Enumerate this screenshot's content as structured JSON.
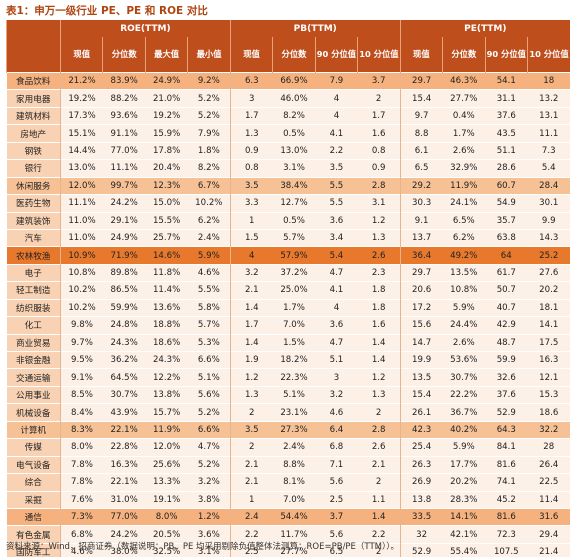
{
  "header": {
    "title": "表1：申万一级行业 PE、PE 和 ROE 对比"
  },
  "table": {
    "groups": [
      "ROE(TTM)",
      "PB(TTM)",
      "PE(TTM)"
    ],
    "columns": [
      "现值",
      "分位数",
      "最大值",
      "最小值",
      "现值",
      "分位数",
      "90 分位值",
      "10 分位值",
      "现值",
      "分位数",
      "90 分位值",
      "10 分位值"
    ],
    "rows": [
      [
        "食品饮料",
        "21.2%",
        "83.9%",
        "24.9%",
        "9.2%",
        "6.3",
        "66.9%",
        "7.9",
        "3.7",
        "29.7",
        "46.3%",
        "54.1",
        "18"
      ],
      [
        "家用电器",
        "19.2%",
        "88.2%",
        "21.0%",
        "5.2%",
        "3",
        "46.0%",
        "4",
        "2",
        "15.4",
        "27.7%",
        "31.1",
        "13.2"
      ],
      [
        "建筑材料",
        "17.3%",
        "93.6%",
        "19.2%",
        "5.2%",
        "1.7",
        "8.2%",
        "4",
        "1.7",
        "9.7",
        "0.4%",
        "37.6",
        "13.1"
      ],
      [
        "房地产",
        "15.1%",
        "91.1%",
        "15.9%",
        "7.9%",
        "1.3",
        "0.5%",
        "4.1",
        "1.6",
        "8.8",
        "1.7%",
        "43.5",
        "11.1"
      ],
      [
        "钢铁",
        "14.4%",
        "77.0%",
        "17.8%",
        "1.8%",
        "0.9",
        "13.0%",
        "2.2",
        "0.8",
        "6.1",
        "2.6%",
        "51.1",
        "7.3"
      ],
      [
        "银行",
        "13.0%",
        "11.1%",
        "20.4%",
        "8.2%",
        "0.8",
        "3.1%",
        "3.5",
        "0.9",
        "6.5",
        "32.9%",
        "28.6",
        "5.4"
      ],
      [
        "休闲服务",
        "12.0%",
        "99.7%",
        "12.3%",
        "6.7%",
        "3.5",
        "38.4%",
        "5.5",
        "2.8",
        "29.2",
        "11.9%",
        "60.7",
        "28.4"
      ],
      [
        "医药生物",
        "11.1%",
        "24.2%",
        "15.0%",
        "10.2%",
        "3.3",
        "12.7%",
        "5.5",
        "3.1",
        "30.3",
        "24.1%",
        "54.9",
        "30.1"
      ],
      [
        "建筑装饰",
        "11.0%",
        "29.1%",
        "15.5%",
        "6.2%",
        "1",
        "0.5%",
        "3.6",
        "1.2",
        "9.1",
        "6.5%",
        "35.7",
        "9.9"
      ],
      [
        "汽车",
        "11.0%",
        "24.9%",
        "25.7%",
        "2.4%",
        "1.5",
        "5.7%",
        "3.4",
        "1.3",
        "13.7",
        "6.2%",
        "63.8",
        "14.3"
      ],
      [
        "农林牧渔",
        "10.9%",
        "71.9%",
        "14.6%",
        "5.9%",
        "4",
        "57.9%",
        "5.4",
        "2.6",
        "36.4",
        "49.2%",
        "64",
        "25.2"
      ],
      [
        "电子",
        "10.8%",
        "89.8%",
        "11.8%",
        "4.6%",
        "3.2",
        "37.2%",
        "4.7",
        "2.3",
        "29.7",
        "13.5%",
        "61.7",
        "27.6"
      ],
      [
        "轻工制造",
        "10.2%",
        "86.5%",
        "11.4%",
        "5.5%",
        "2.1",
        "25.0%",
        "4.1",
        "1.8",
        "20.6",
        "10.8%",
        "50.7",
        "20.2"
      ],
      [
        "纺织服装",
        "10.2%",
        "59.9%",
        "13.6%",
        "5.8%",
        "1.4",
        "1.7%",
        "4",
        "1.8",
        "17.2",
        "5.9%",
        "40.7",
        "18.1"
      ],
      [
        "化工",
        "9.8%",
        "24.8%",
        "18.8%",
        "5.7%",
        "1.7",
        "7.0%",
        "3.6",
        "1.6",
        "15.6",
        "24.4%",
        "42.9",
        "14.1"
      ],
      [
        "商业贸易",
        "9.7%",
        "24.3%",
        "18.6%",
        "5.3%",
        "1.4",
        "1.5%",
        "4.7",
        "1.4",
        "14.7",
        "2.6%",
        "48.7",
        "17.5"
      ],
      [
        "非银金融",
        "9.5%",
        "36.2%",
        "24.3%",
        "6.6%",
        "1.9",
        "18.2%",
        "5.1",
        "1.4",
        "19.9",
        "53.6%",
        "59.9",
        "16.3"
      ],
      [
        "交通运输",
        "9.1%",
        "64.5%",
        "12.2%",
        "5.1%",
        "1.2",
        "22.3%",
        "3",
        "1.2",
        "13.5",
        "30.7%",
        "32.6",
        "12.1"
      ],
      [
        "公用事业",
        "8.5%",
        "30.7%",
        "13.8%",
        "5.6%",
        "1.3",
        "5.1%",
        "3.2",
        "1.3",
        "15.4",
        "22.2%",
        "37.6",
        "15.3"
      ],
      [
        "机械设备",
        "8.4%",
        "43.9%",
        "15.7%",
        "5.2%",
        "2",
        "23.1%",
        "4.6",
        "2",
        "26.1",
        "36.7%",
        "52.9",
        "18.6"
      ],
      [
        "计算机",
        "8.3%",
        "22.1%",
        "11.9%",
        "6.6%",
        "3.5",
        "27.3%",
        "6.4",
        "2.8",
        "42.3",
        "40.2%",
        "64.3",
        "32.2"
      ],
      [
        "传媒",
        "8.0%",
        "22.8%",
        "12.0%",
        "4.7%",
        "2",
        "2.4%",
        "6.8",
        "2.6",
        "25.4",
        "5.9%",
        "84.1",
        "28"
      ],
      [
        "电气设备",
        "7.8%",
        "16.3%",
        "25.6%",
        "5.2%",
        "2.1",
        "8.8%",
        "7.1",
        "2.1",
        "26.3",
        "17.7%",
        "81.6",
        "26.4"
      ],
      [
        "综合",
        "7.8%",
        "22.1%",
        "13.3%",
        "3.2%",
        "2.1",
        "8.1%",
        "5.6",
        "2",
        "26.9",
        "20.2%",
        "74.1",
        "22.5"
      ],
      [
        "采掘",
        "7.6%",
        "31.0%",
        "19.1%",
        "3.8%",
        "1",
        "7.0%",
        "2.5",
        "1.1",
        "13.8",
        "28.3%",
        "45.2",
        "11.4"
      ],
      [
        "通信",
        "7.3%",
        "77.0%",
        "8.0%",
        "1.2%",
        "2.4",
        "54.4%",
        "3.7",
        "1.4",
        "33.5",
        "14.1%",
        "81.6",
        "31.6"
      ],
      [
        "有色金属",
        "6.8%",
        "24.2%",
        "20.5%",
        "3.6%",
        "2.2",
        "11.7%",
        "5.6",
        "2.2",
        "32",
        "42.1%",
        "72.3",
        "29.4"
      ],
      [
        "国防军工",
        "4.6%",
        "38.0%",
        "32.5%",
        "3.1%",
        "2.5",
        "27.7%",
        "6.5",
        "2",
        "52.9",
        "55.4%",
        "107.5",
        "21.4"
      ]
    ]
  },
  "footer": {
    "source": "资料来源：Wind，招商证券（数据说明：PB、PE 均采用剔除负值整体法测算；ROE=PB/PE（TTM））。"
  }
}
